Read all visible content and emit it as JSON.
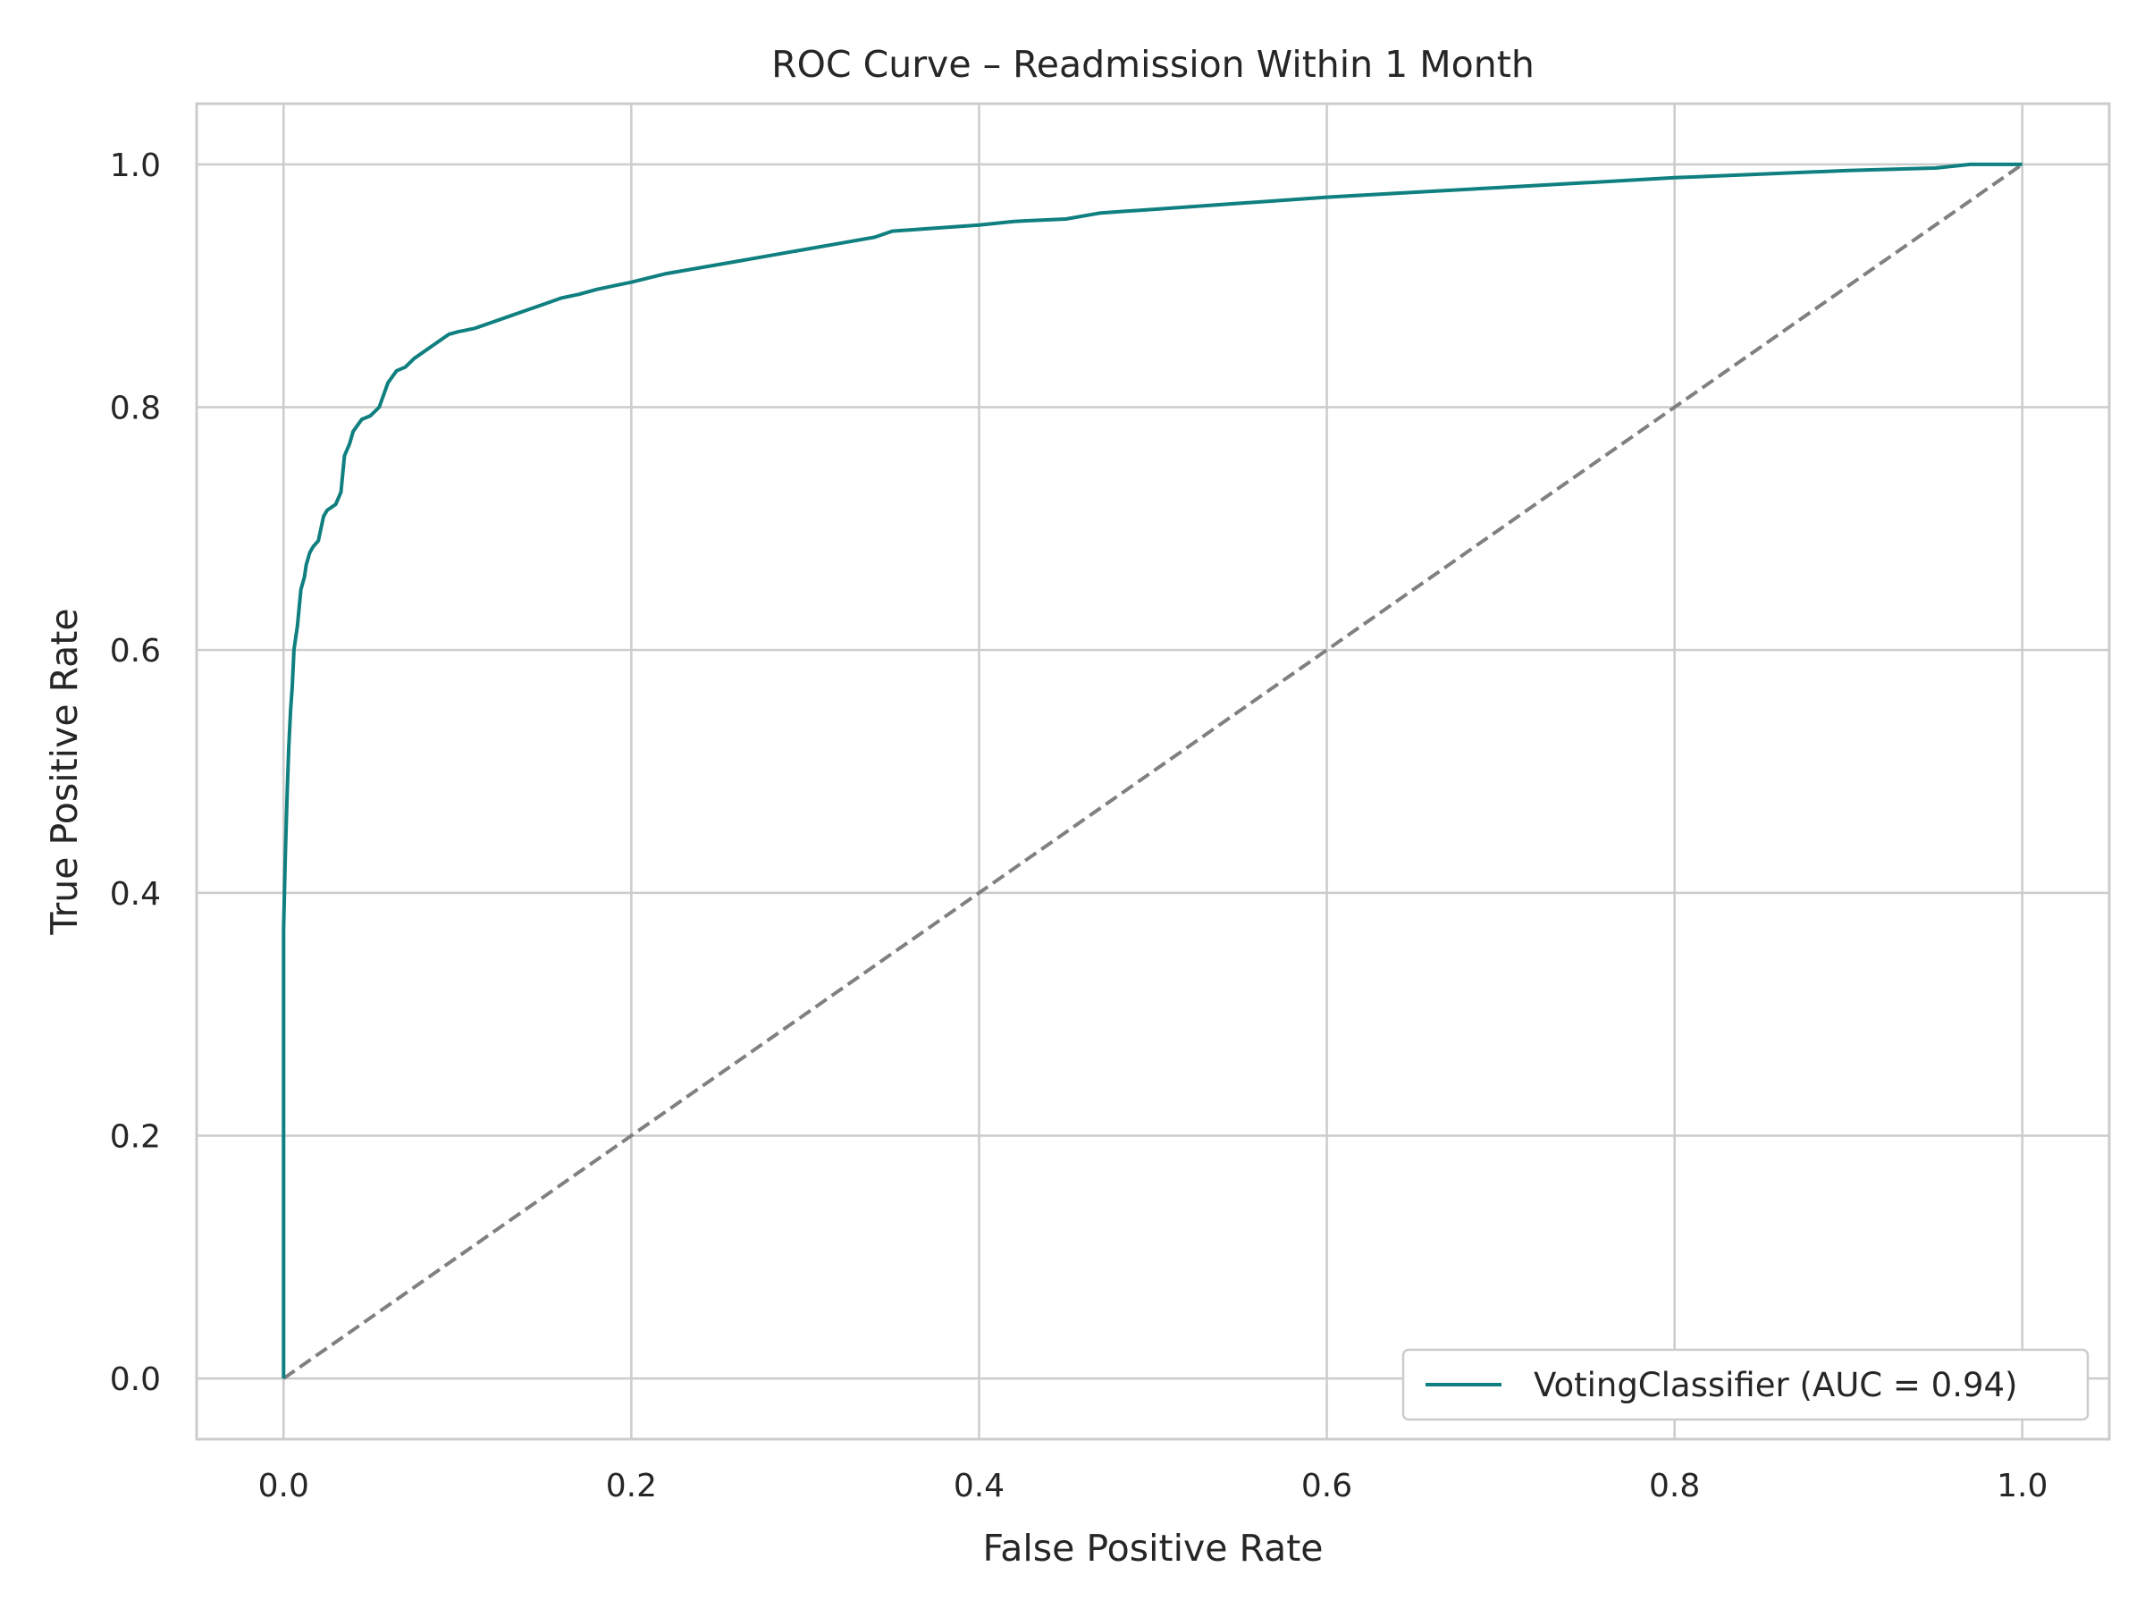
{
  "chart_data": {
    "type": "line",
    "title": "ROC Curve – Readmission Within 1 Month",
    "xlabel": "False Positive Rate",
    "ylabel": "True Positive Rate",
    "xlim": [
      -0.05,
      1.05
    ],
    "ylim": [
      -0.05,
      1.05
    ],
    "xticks": [
      0.0,
      0.2,
      0.4,
      0.6,
      0.8,
      1.0
    ],
    "yticks": [
      0.0,
      0.2,
      0.4,
      0.6,
      0.8,
      1.0
    ],
    "xtick_labels": [
      "0.0",
      "0.2",
      "0.4",
      "0.6",
      "0.8",
      "1.0"
    ],
    "ytick_labels": [
      "0.0",
      "0.2",
      "0.4",
      "0.6",
      "0.8",
      "1.0"
    ],
    "grid": true,
    "legend_position": "lower-right",
    "series": [
      {
        "name": "VotingClassifier (AUC = 0.94)",
        "color": "#0f7f7f",
        "style": "solid",
        "x": [
          0.0,
          0.0,
          0.0,
          0.001,
          0.002,
          0.003,
          0.004,
          0.005,
          0.006,
          0.008,
          0.01,
          0.012,
          0.013,
          0.015,
          0.017,
          0.02,
          0.023,
          0.025,
          0.03,
          0.033,
          0.035,
          0.038,
          0.04,
          0.045,
          0.05,
          0.055,
          0.06,
          0.065,
          0.07,
          0.075,
          0.085,
          0.09,
          0.095,
          0.1,
          0.11,
          0.12,
          0.13,
          0.14,
          0.15,
          0.16,
          0.17,
          0.18,
          0.19,
          0.2,
          0.22,
          0.24,
          0.26,
          0.28,
          0.3,
          0.32,
          0.34,
          0.35,
          0.38,
          0.4,
          0.42,
          0.45,
          0.47,
          0.5,
          0.55,
          0.6,
          0.65,
          0.7,
          0.75,
          0.8,
          0.85,
          0.9,
          0.95,
          0.97,
          1.0
        ],
        "y": [
          0.0,
          0.2,
          0.37,
          0.43,
          0.48,
          0.52,
          0.55,
          0.57,
          0.6,
          0.62,
          0.65,
          0.66,
          0.67,
          0.68,
          0.685,
          0.69,
          0.71,
          0.715,
          0.72,
          0.73,
          0.76,
          0.77,
          0.78,
          0.79,
          0.793,
          0.8,
          0.82,
          0.83,
          0.833,
          0.84,
          0.85,
          0.855,
          0.86,
          0.862,
          0.865,
          0.87,
          0.875,
          0.88,
          0.885,
          0.89,
          0.893,
          0.897,
          0.9,
          0.903,
          0.91,
          0.915,
          0.92,
          0.925,
          0.93,
          0.935,
          0.94,
          0.945,
          0.948,
          0.95,
          0.953,
          0.955,
          0.96,
          0.963,
          0.968,
          0.973,
          0.977,
          0.981,
          0.985,
          0.989,
          0.992,
          0.995,
          0.997,
          1.0,
          1.0
        ]
      },
      {
        "name": "",
        "color": "#808080",
        "style": "dashed",
        "x": [
          0.0,
          1.0
        ],
        "y": [
          0.0,
          1.0
        ]
      }
    ]
  }
}
